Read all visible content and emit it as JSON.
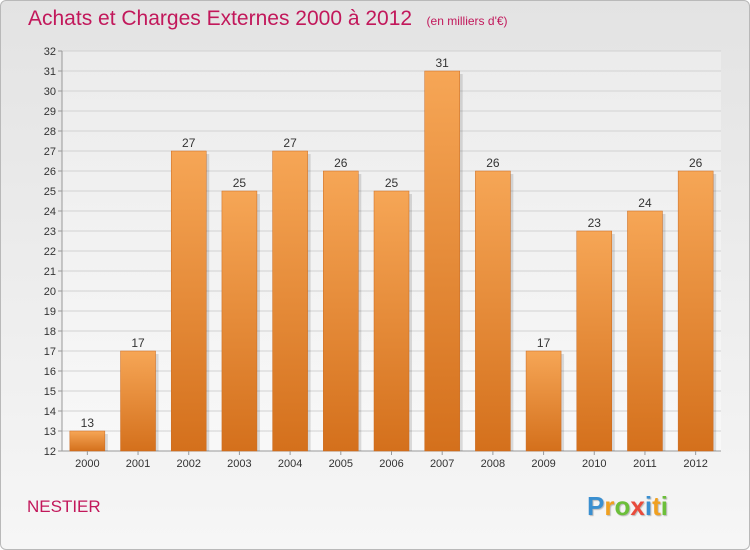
{
  "chart_data": {
    "type": "bar",
    "title": "Achats et Charges Externes 2000 à 2012",
    "subtitle": "(en milliers d'€)",
    "categories": [
      "2000",
      "2001",
      "2002",
      "2003",
      "2004",
      "2005",
      "2006",
      "2007",
      "2008",
      "2009",
      "2010",
      "2011",
      "2012"
    ],
    "values": [
      13,
      17,
      27,
      25,
      27,
      26,
      25,
      31,
      26,
      17,
      23,
      24,
      26
    ],
    "ylim": [
      12,
      32
    ],
    "yticks": [
      12,
      13,
      14,
      15,
      16,
      17,
      18,
      19,
      20,
      21,
      22,
      23,
      24,
      25,
      26,
      27,
      28,
      29,
      30,
      31,
      32
    ],
    "grid": true,
    "xlabel": "",
    "ylabel": "",
    "bar_color": "#e8822c"
  },
  "footer": {
    "commune": "NESTIER",
    "brand_letters": [
      {
        "ch": "P",
        "color": "#3a8fd0"
      },
      {
        "ch": "r",
        "color": "#f0a020"
      },
      {
        "ch": "o",
        "color": "#6cbf3a"
      },
      {
        "ch": "x",
        "color": "#e94b3c"
      },
      {
        "ch": "i",
        "color": "#3a8fd0"
      },
      {
        "ch": "t",
        "color": "#f0a020"
      },
      {
        "ch": "i",
        "color": "#6cbf3a"
      }
    ]
  }
}
